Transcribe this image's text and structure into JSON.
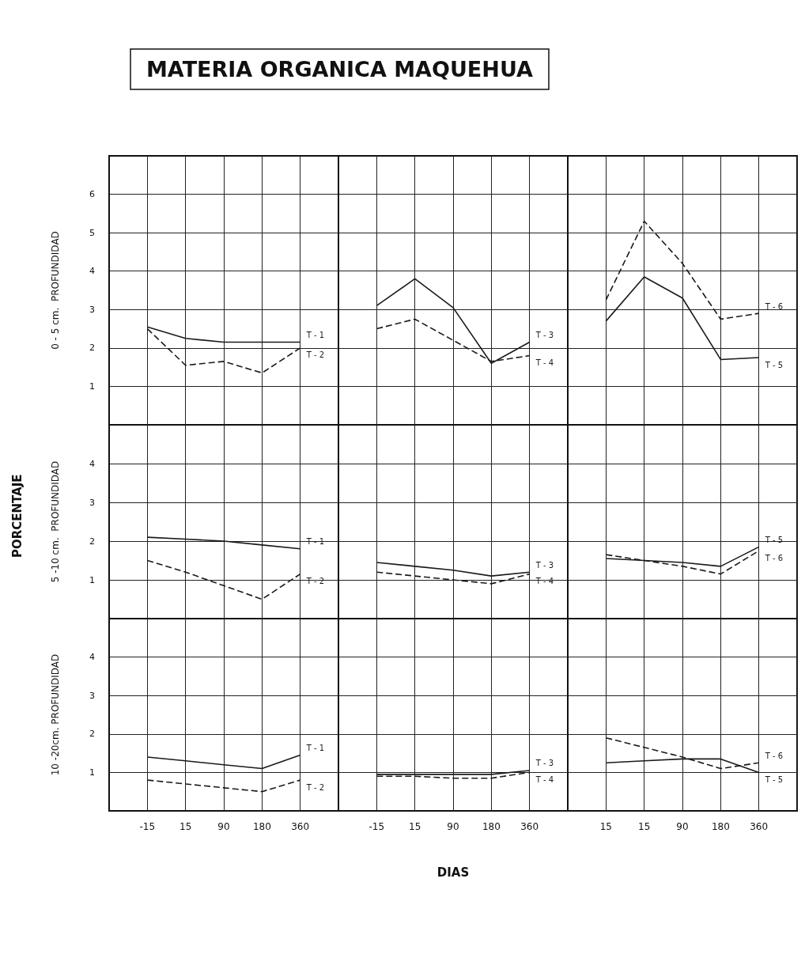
{
  "chart_data": [
    {
      "type": "line",
      "title": "MATERIA ORGANICA MAQUEHUA",
      "ylabel": "0 - 5 cm.  PROFUNDIDAD",
      "categories": [
        "-15",
        "15",
        "90",
        "180",
        "360"
      ],
      "series": [
        {
          "name": "T - 1",
          "color": "#1a1a1a",
          "line_style": "solid",
          "values": [
            2.55,
            2.25,
            2.15,
            2.15,
            2.15
          ]
        },
        {
          "name": "T - 2",
          "color": "#1a1a1a",
          "line_style": "dashed",
          "values": [
            2.5,
            1.55,
            1.65,
            1.35,
            2.0
          ]
        }
      ],
      "ylim": [
        0,
        7
      ],
      "yticks": [
        1,
        2,
        3,
        4,
        5,
        6
      ],
      "grid": true,
      "marker": "none",
      "tick_labels": "y"
    },
    {
      "type": "line",
      "categories": [
        "-15",
        "15",
        "90",
        "180",
        "360"
      ],
      "series": [
        {
          "name": "T - 3",
          "color": "#1a1a1a",
          "line_style": "solid",
          "values": [
            3.1,
            3.8,
            3.05,
            1.6,
            2.15
          ]
        },
        {
          "name": "T - 4",
          "color": "#1a1a1a",
          "line_style": "dashed",
          "values": [
            2.5,
            2.75,
            2.2,
            1.65,
            1.8
          ]
        }
      ],
      "ylim": [
        0,
        7
      ],
      "yticks": [
        1,
        2,
        3,
        4,
        5,
        6
      ],
      "grid": true,
      "marker": "none",
      "tick_labels": false
    },
    {
      "type": "line",
      "categories": [
        "15",
        "15",
        "90",
        "180",
        "360"
      ],
      "series": [
        {
          "name": "T - 5",
          "color": "#1a1a1a",
          "line_style": "solid",
          "values": [
            2.7,
            3.85,
            3.3,
            1.7,
            1.75
          ]
        },
        {
          "name": "T - 6",
          "color": "#1a1a1a",
          "line_style": "dashed",
          "values": [
            3.25,
            5.3,
            4.2,
            2.75,
            2.9
          ]
        }
      ],
      "ylim": [
        0,
        7
      ],
      "yticks": [
        1,
        2,
        3,
        4,
        5,
        6
      ],
      "grid": true,
      "marker": "none",
      "tick_labels": false
    },
    {
      "type": "line",
      "ylabel": "5 -10 cm.  PROFUNDIDAD",
      "annotations": [
        "PORCENTAJE"
      ],
      "categories": [
        "-15",
        "15",
        "90",
        "180",
        "360"
      ],
      "series": [
        {
          "name": "T - 1",
          "color": "#1a1a1a",
          "line_style": "solid",
          "values": [
            2.1,
            2.05,
            2.0,
            1.9,
            1.8
          ]
        },
        {
          "name": "T - 2",
          "color": "#1a1a1a",
          "line_style": "dashed",
          "values": [
            1.5,
            1.2,
            0.85,
            0.5,
            1.15
          ]
        }
      ],
      "ylim": [
        0,
        5
      ],
      "yticks": [
        1,
        2,
        3,
        4
      ],
      "grid": true,
      "marker": "none",
      "tick_labels": "y"
    },
    {
      "type": "line",
      "categories": [
        "-15",
        "15",
        "90",
        "180",
        "360"
      ],
      "series": [
        {
          "name": "T - 3",
          "color": "#1a1a1a",
          "line_style": "solid",
          "values": [
            1.45,
            1.35,
            1.25,
            1.1,
            1.2
          ]
        },
        {
          "name": "T - 4",
          "color": "#1a1a1a",
          "line_style": "dashed",
          "values": [
            1.2,
            1.1,
            1.0,
            0.9,
            1.15
          ]
        }
      ],
      "ylim": [
        0,
        5
      ],
      "yticks": [
        1,
        2,
        3,
        4
      ],
      "grid": true,
      "marker": "none",
      "tick_labels": false
    },
    {
      "type": "line",
      "categories": [
        "15",
        "15",
        "90",
        "180",
        "360"
      ],
      "series": [
        {
          "name": "T - 5",
          "color": "#1a1a1a",
          "line_style": "solid",
          "values": [
            1.55,
            1.5,
            1.45,
            1.35,
            1.85
          ]
        },
        {
          "name": "T - 6",
          "color": "#1a1a1a",
          "line_style": "dashed",
          "values": [
            1.65,
            1.5,
            1.35,
            1.15,
            1.75
          ]
        }
      ],
      "ylim": [
        0,
        5
      ],
      "yticks": [
        1,
        2,
        3,
        4
      ],
      "grid": true,
      "marker": "none",
      "tick_labels": false
    },
    {
      "type": "line",
      "ylabel": "10 -20cm. PROFUNDIDAD",
      "categories": [
        "-15",
        "15",
        "90",
        "180",
        "360"
      ],
      "series": [
        {
          "name": "T - 1",
          "color": "#1a1a1a",
          "line_style": "solid",
          "values": [
            1.4,
            1.3,
            1.2,
            1.1,
            1.45
          ]
        },
        {
          "name": "T - 2",
          "color": "#1a1a1a",
          "line_style": "dashed",
          "values": [
            0.8,
            0.7,
            0.6,
            0.5,
            0.8
          ]
        }
      ],
      "ylim": [
        0,
        5
      ],
      "yticks": [
        1,
        2,
        3,
        4
      ],
      "grid": true,
      "marker": "none"
    },
    {
      "type": "line",
      "xlabel": "DIAS",
      "categories": [
        "-15",
        "15",
        "90",
        "180",
        "360"
      ],
      "series": [
        {
          "name": "T - 3",
          "color": "#1a1a1a",
          "line_style": "solid",
          "values": [
            0.95,
            0.95,
            0.95,
            0.95,
            1.05
          ]
        },
        {
          "name": "T - 4",
          "color": "#1a1a1a",
          "line_style": "dashed",
          "values": [
            0.9,
            0.9,
            0.85,
            0.85,
            1.0
          ]
        }
      ],
      "ylim": [
        0,
        5
      ],
      "yticks": [
        1,
        2,
        3,
        4
      ],
      "grid": true,
      "marker": "none",
      "tick_labels": "x"
    },
    {
      "type": "line",
      "categories": [
        "15",
        "15",
        "90",
        "180",
        "360"
      ],
      "series": [
        {
          "name": "T - 5",
          "color": "#1a1a1a",
          "line_style": "solid",
          "values": [
            1.25,
            1.3,
            1.35,
            1.35,
            1.0
          ]
        },
        {
          "name": "T - 6",
          "color": "#1a1a1a",
          "line_style": "dashed",
          "values": [
            1.9,
            1.65,
            1.4,
            1.1,
            1.25
          ]
        }
      ],
      "ylim": [
        0,
        5
      ],
      "yticks": [
        1,
        2,
        3,
        4
      ],
      "grid": true,
      "marker": "none",
      "tick_labels": "x"
    }
  ]
}
